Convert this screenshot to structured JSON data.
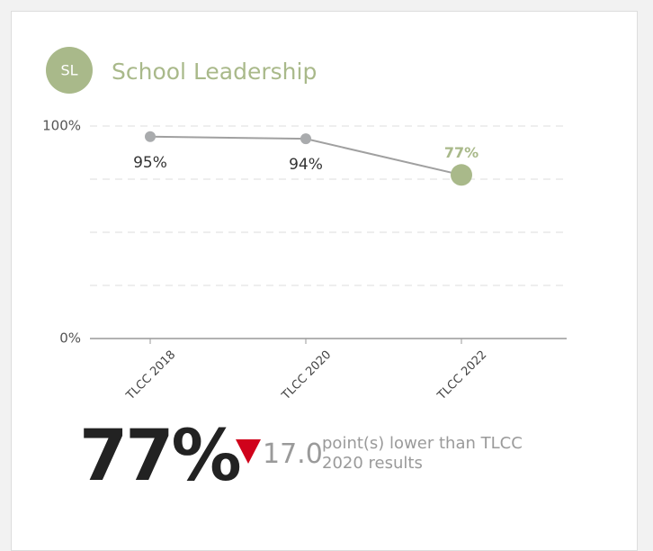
{
  "chart_data": {
    "type": "line",
    "title": "School Leadership",
    "categories": [
      "TLCC 2018",
      "TLCC 2020",
      "TLCC 2022"
    ],
    "values": [
      95,
      94,
      77
    ],
    "value_labels": [
      "95%",
      "94%",
      "77%"
    ],
    "color": "#a0a0a0",
    "point_color": "#a9abad",
    "highlight_color": "#a9b98a",
    "ylim": [
      0,
      100
    ],
    "yticks": [
      {
        "value": 0,
        "label": "0%"
      },
      {
        "value": 100,
        "label": "100%"
      }
    ],
    "ygrid": [
      25,
      50,
      75,
      100
    ],
    "grid": true
  },
  "badge": "SL",
  "summary": {
    "value_label": "77%",
    "direction": "down",
    "change": "17.0",
    "change_text": "point(s) lower than TLCC 2020 results",
    "change_color": "#d0021b"
  }
}
